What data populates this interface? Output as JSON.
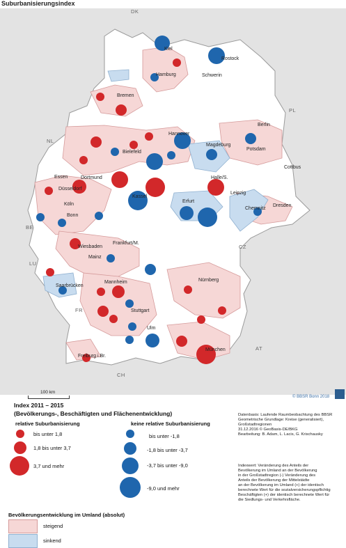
{
  "map": {
    "title": "Suburbanisierungsindex",
    "countries": [
      "DK",
      "PL",
      "NL",
      "BE",
      "LU",
      "FR",
      "CH",
      "AT",
      "CZ"
    ],
    "cities": [
      "Kiel",
      "Rostock",
      "Hamburg",
      "Schwerin",
      "Bremen",
      "Berlin",
      "Hannover",
      "Potsdam",
      "Magdeburg",
      "Bielefeld",
      "Cottbus",
      "Essen",
      "Dortmund",
      "Halle/S.",
      "Düsseldorf",
      "Kassel",
      "Leipzig",
      "Köln",
      "Erfurt",
      "Chemnitz",
      "Dresden",
      "Bonn",
      "Wiesbaden",
      "Frankfurt/M.",
      "Mainz",
      "Saarbrücken",
      "Mannheim",
      "Nürnberg",
      "Stuttgart",
      "Ulm",
      "München",
      "Freiburg i.Br."
    ],
    "scale": "100 km",
    "copyright": "© BBSR Bonn 2018"
  },
  "legend": {
    "heading1": "Index 2011 – 2015",
    "heading2": "(Bevölkerungs-, Beschäftigten und Flächenentwicklung)",
    "positive_title": "relative Suburbanisierung",
    "negative_title": "keine relative Suburbanisierung",
    "positive_items": [
      "bis unter 1,8",
      "1,8 bis unter 3,7",
      "3,7 und mehr"
    ],
    "negative_items": [
      "bis unter -1,8",
      "-1,8 bis unter -3,7",
      "-3,7 bis unter -9,0",
      "-9,0 und mehr"
    ],
    "area_title": "Bevölkerungsentwicklung im Umland (absolut)",
    "area_items": [
      "steigend",
      "sinkend"
    ],
    "colors": {
      "positive": "#d2282a",
      "negative": "#1f66ad",
      "rising": "#f6d7d6",
      "falling": "#c8dcef",
      "background": "#e3e3e3"
    }
  },
  "notes": {
    "source": [
      "Datenbasis: Laufende Raumbeobachtung des BBSR",
      "Geometrische Grundlage: Kreise (generalisiert),",
      "Großstadtregionen",
      "31.12.2016 © GeoBasis-DE/BKG",
      "Bearbeitung: B. Adam, L. Lacis, G. Krischausky"
    ],
    "definition": [
      "Indexwert: Veränderung des Anteils der",
      "Bevölkerung im Umland an der Bevölkerung",
      "in der Großstadtregion (-) Veränderung des",
      "Anteils der Bevölkerung der Mittelstädte",
      "an der Bevölkerung im Umland (+) der identisch",
      "berechnete Wert für die sozialversicherungspflichtig",
      "Beschäftigten (+) der identisch berechnete Wert für",
      "die Siedlungs- und Verkehrsfläche."
    ]
  }
}
